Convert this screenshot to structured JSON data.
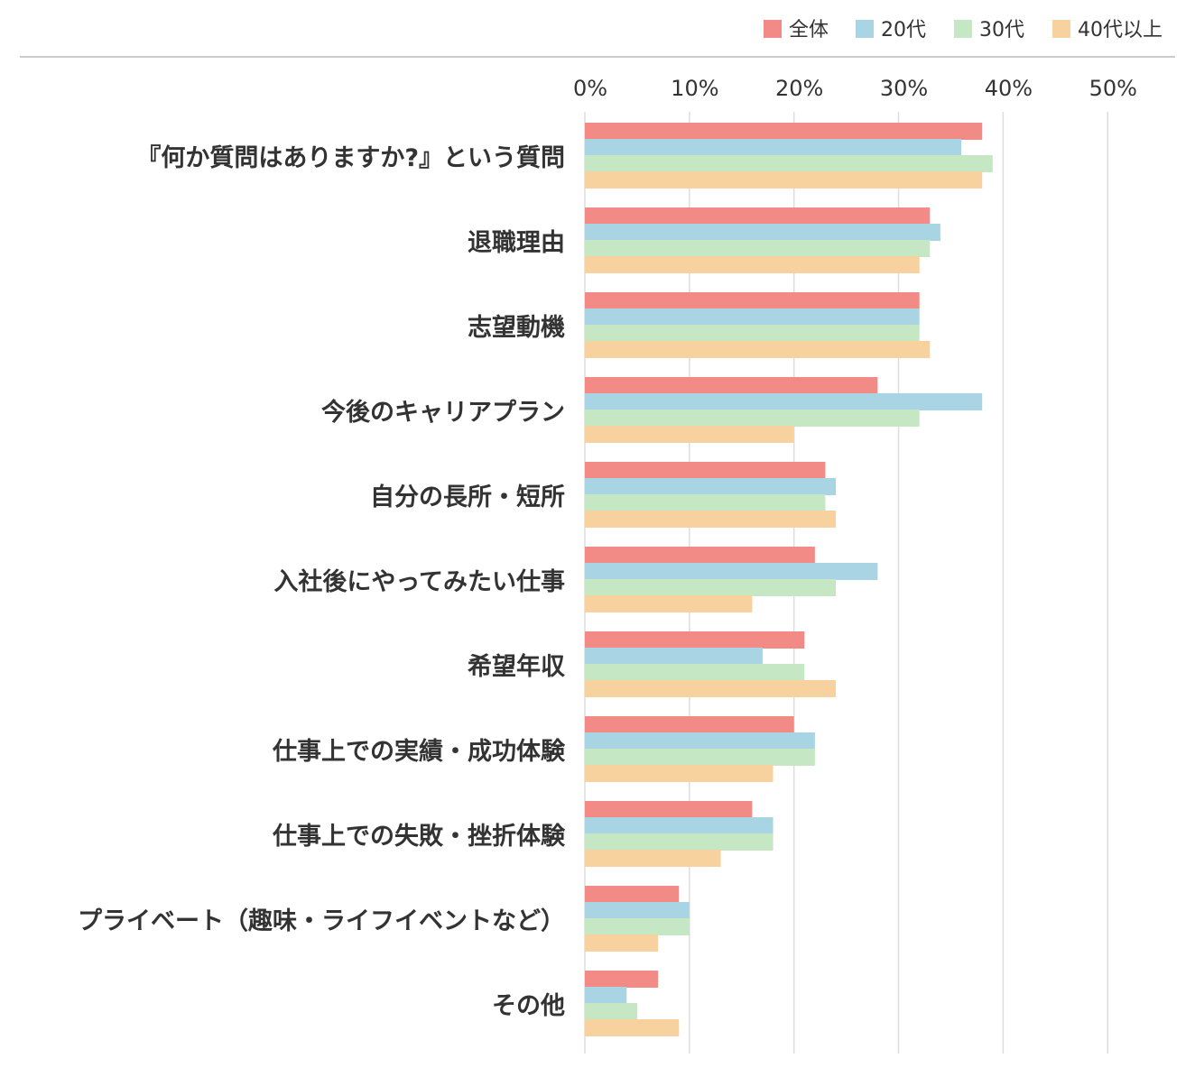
{
  "chart_data": {
    "type": "bar",
    "orientation": "horizontal",
    "xlim": [
      0,
      53
    ],
    "xticks": [
      0,
      10,
      20,
      30,
      40,
      50
    ],
    "tick_suffix": "%",
    "grid": true,
    "legend_position": "top-right",
    "categories": [
      "『何か質問はありますか?』という質問",
      "退職理由",
      "志望動機",
      "今後のキャリアプラン",
      "自分の長所・短所",
      "入社後にやってみたい仕事",
      "希望年収",
      "仕事上での実績・成功体験",
      "仕事上での失敗・挫折体験",
      "プライベート（趣味・ライフイベントなど）",
      "その他"
    ],
    "series": [
      {
        "name": "全体",
        "color": "#f28b86",
        "values": [
          38,
          33,
          32,
          28,
          23,
          22,
          21,
          20,
          16,
          9,
          7
        ]
      },
      {
        "name": "20代",
        "color": "#a9d4e3",
        "values": [
          36,
          34,
          32,
          38,
          24,
          28,
          17,
          22,
          18,
          10,
          4
        ]
      },
      {
        "name": "30代",
        "color": "#c6e7c4",
        "values": [
          39,
          33,
          32,
          32,
          23,
          24,
          21,
          22,
          18,
          10,
          5
        ]
      },
      {
        "name": "40代以上",
        "color": "#f8d29e",
        "values": [
          38,
          32,
          33,
          20,
          24,
          16,
          24,
          18,
          13,
          7,
          9
        ]
      }
    ]
  }
}
